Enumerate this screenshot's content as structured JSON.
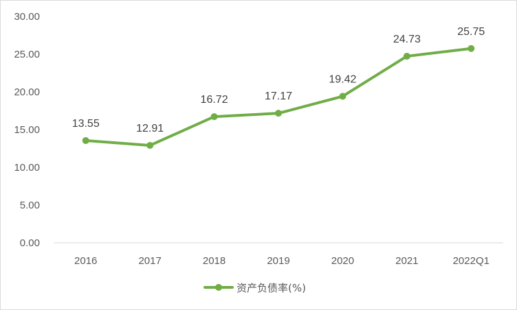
{
  "chart_data": {
    "type": "line",
    "categories": [
      "2016",
      "2017",
      "2018",
      "2019",
      "2020",
      "2021",
      "2022Q1"
    ],
    "series": [
      {
        "name": "资产负债率(%)",
        "values": [
          13.55,
          12.91,
          16.72,
          17.17,
          19.42,
          24.73,
          25.75
        ],
        "color": "#70ad47"
      }
    ],
    "data_labels": [
      "13.55",
      "12.91",
      "16.72",
      "17.17",
      "19.42",
      "24.73",
      "25.75"
    ],
    "y_ticks": [
      "0.00",
      "5.00",
      "10.00",
      "15.00",
      "20.00",
      "25.00",
      "30.00"
    ],
    "ylim": [
      0,
      30
    ],
    "grid": false,
    "legend_position": "bottom"
  }
}
